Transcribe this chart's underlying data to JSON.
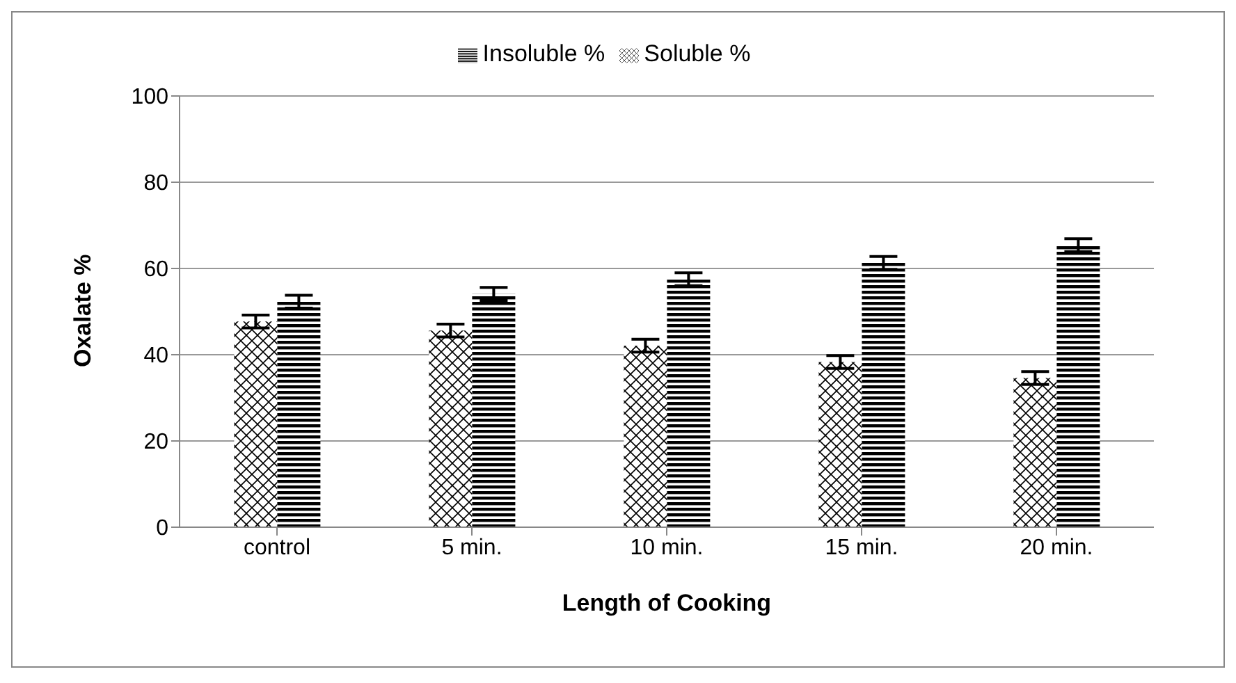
{
  "chart_data": {
    "type": "bar",
    "xlabel": "Length of Cooking",
    "ylabel": "Oxalate %",
    "categories": [
      "control",
      "5 min.",
      "10 min.",
      "15 min.",
      "20 min."
    ],
    "series": [
      {
        "name": "Soluble %",
        "color": "#000000",
        "values": [
          47.7,
          45.6,
          42.1,
          38.3,
          34.6
        ],
        "errors": [
          1.5,
          1.5,
          1.5,
          1.5,
          1.5
        ]
      },
      {
        "name": "Insoluble %",
        "color": "#000000",
        "values": [
          52.3,
          54.1,
          57.5,
          61.3,
          65.4
        ],
        "errors": [
          1.5,
          1.5,
          1.5,
          1.5,
          1.5
        ]
      }
    ],
    "ylim": [
      0,
      100
    ],
    "yticks": [
      0,
      20,
      40,
      60,
      80,
      100
    ],
    "grid": "y",
    "legend": "top"
  }
}
